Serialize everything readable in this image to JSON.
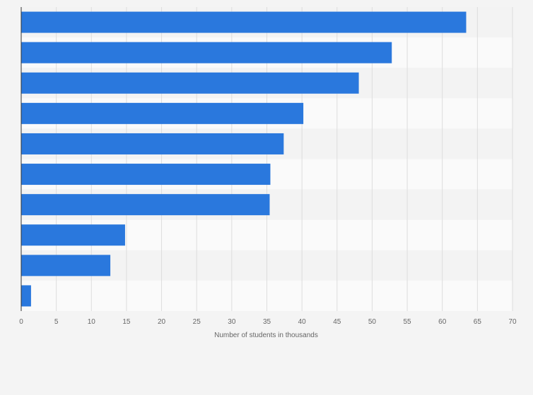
{
  "chart_data": {
    "type": "bar",
    "orientation": "horizontal",
    "categories": [
      "",
      "",
      "",
      "",
      "",
      "",
      "",
      "",
      "",
      ""
    ],
    "values": [
      63.4,
      52.8,
      48.1,
      40.2,
      37.4,
      35.5,
      35.4,
      14.8,
      12.7,
      1.4
    ],
    "title": "",
    "xlabel": "Number of students in thousands",
    "ylabel": "",
    "xlim": [
      0,
      70
    ],
    "xticks": [
      0,
      5,
      10,
      15,
      20,
      25,
      30,
      35,
      40,
      45,
      50,
      55,
      60,
      65,
      70
    ],
    "xtick_labels": [
      "0",
      "5",
      "10",
      "15",
      "20",
      "25",
      "30",
      "35",
      "40",
      "45",
      "50",
      "55",
      "60",
      "65",
      "70"
    ],
    "grid": "vertical",
    "legend": "none",
    "colors": {
      "bar": "#2a78dd",
      "band_light": "#fafafa",
      "band_dark": "#f3f3f3",
      "grid": "#dddddd",
      "axis": "#333333",
      "text": "#666666"
    }
  }
}
